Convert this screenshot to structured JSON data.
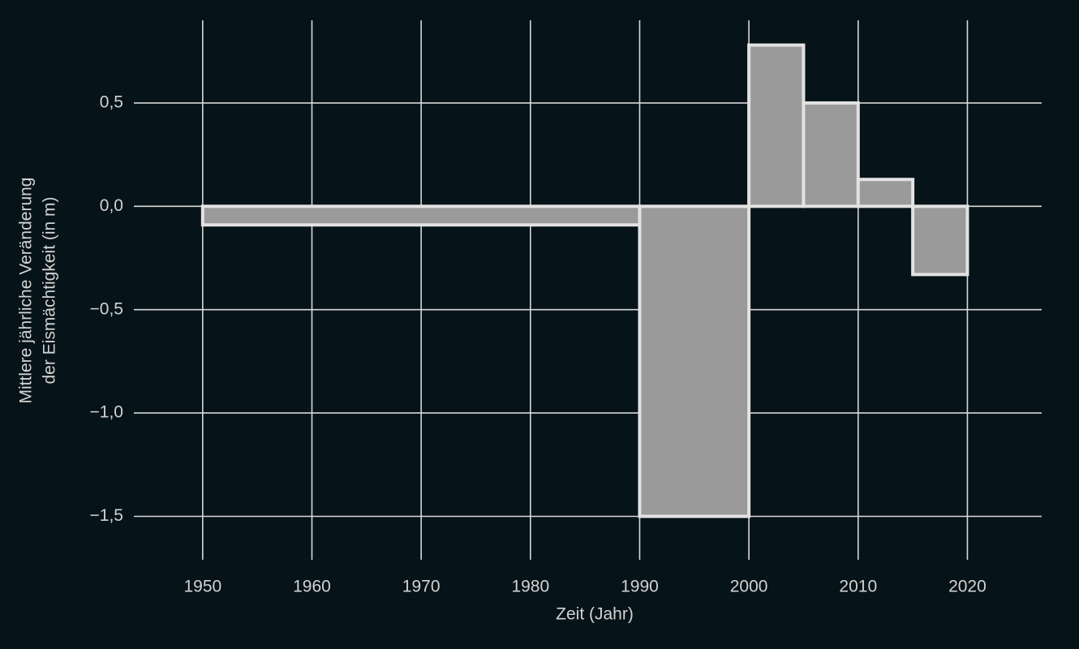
{
  "chart_data": {
    "type": "histogram",
    "xlabel": "Zeit (Jahr)",
    "ylabel": [
      "Mittlere jährliche Veränderung",
      "der Eismächtigkeit (in m)"
    ],
    "bins": [
      1950,
      1990,
      2000,
      2005,
      2010,
      2015,
      2020
    ],
    "values": [
      -0.09,
      -1.5,
      0.78,
      0.5,
      0.13,
      -0.33
    ],
    "color": "#9a9a9a",
    "edgecolor": "#e2e2e2",
    "xlim": [
      1943.7,
      2026.8
    ],
    "ylim": [
      -1.71,
      0.9
    ],
    "xticks": [
      1950,
      1960,
      1970,
      1980,
      1990,
      2000,
      2010,
      2020
    ],
    "yticks": [
      {
        "value": 0.5,
        "label": "0,5"
      },
      {
        "value": 0,
        "label": "0,0"
      },
      {
        "value": -0.5,
        "label": "−0,5"
      },
      {
        "value": -1,
        "label": "−1,0"
      },
      {
        "value": -1.5,
        "label": "−1,5"
      }
    ],
    "grid": true
  }
}
